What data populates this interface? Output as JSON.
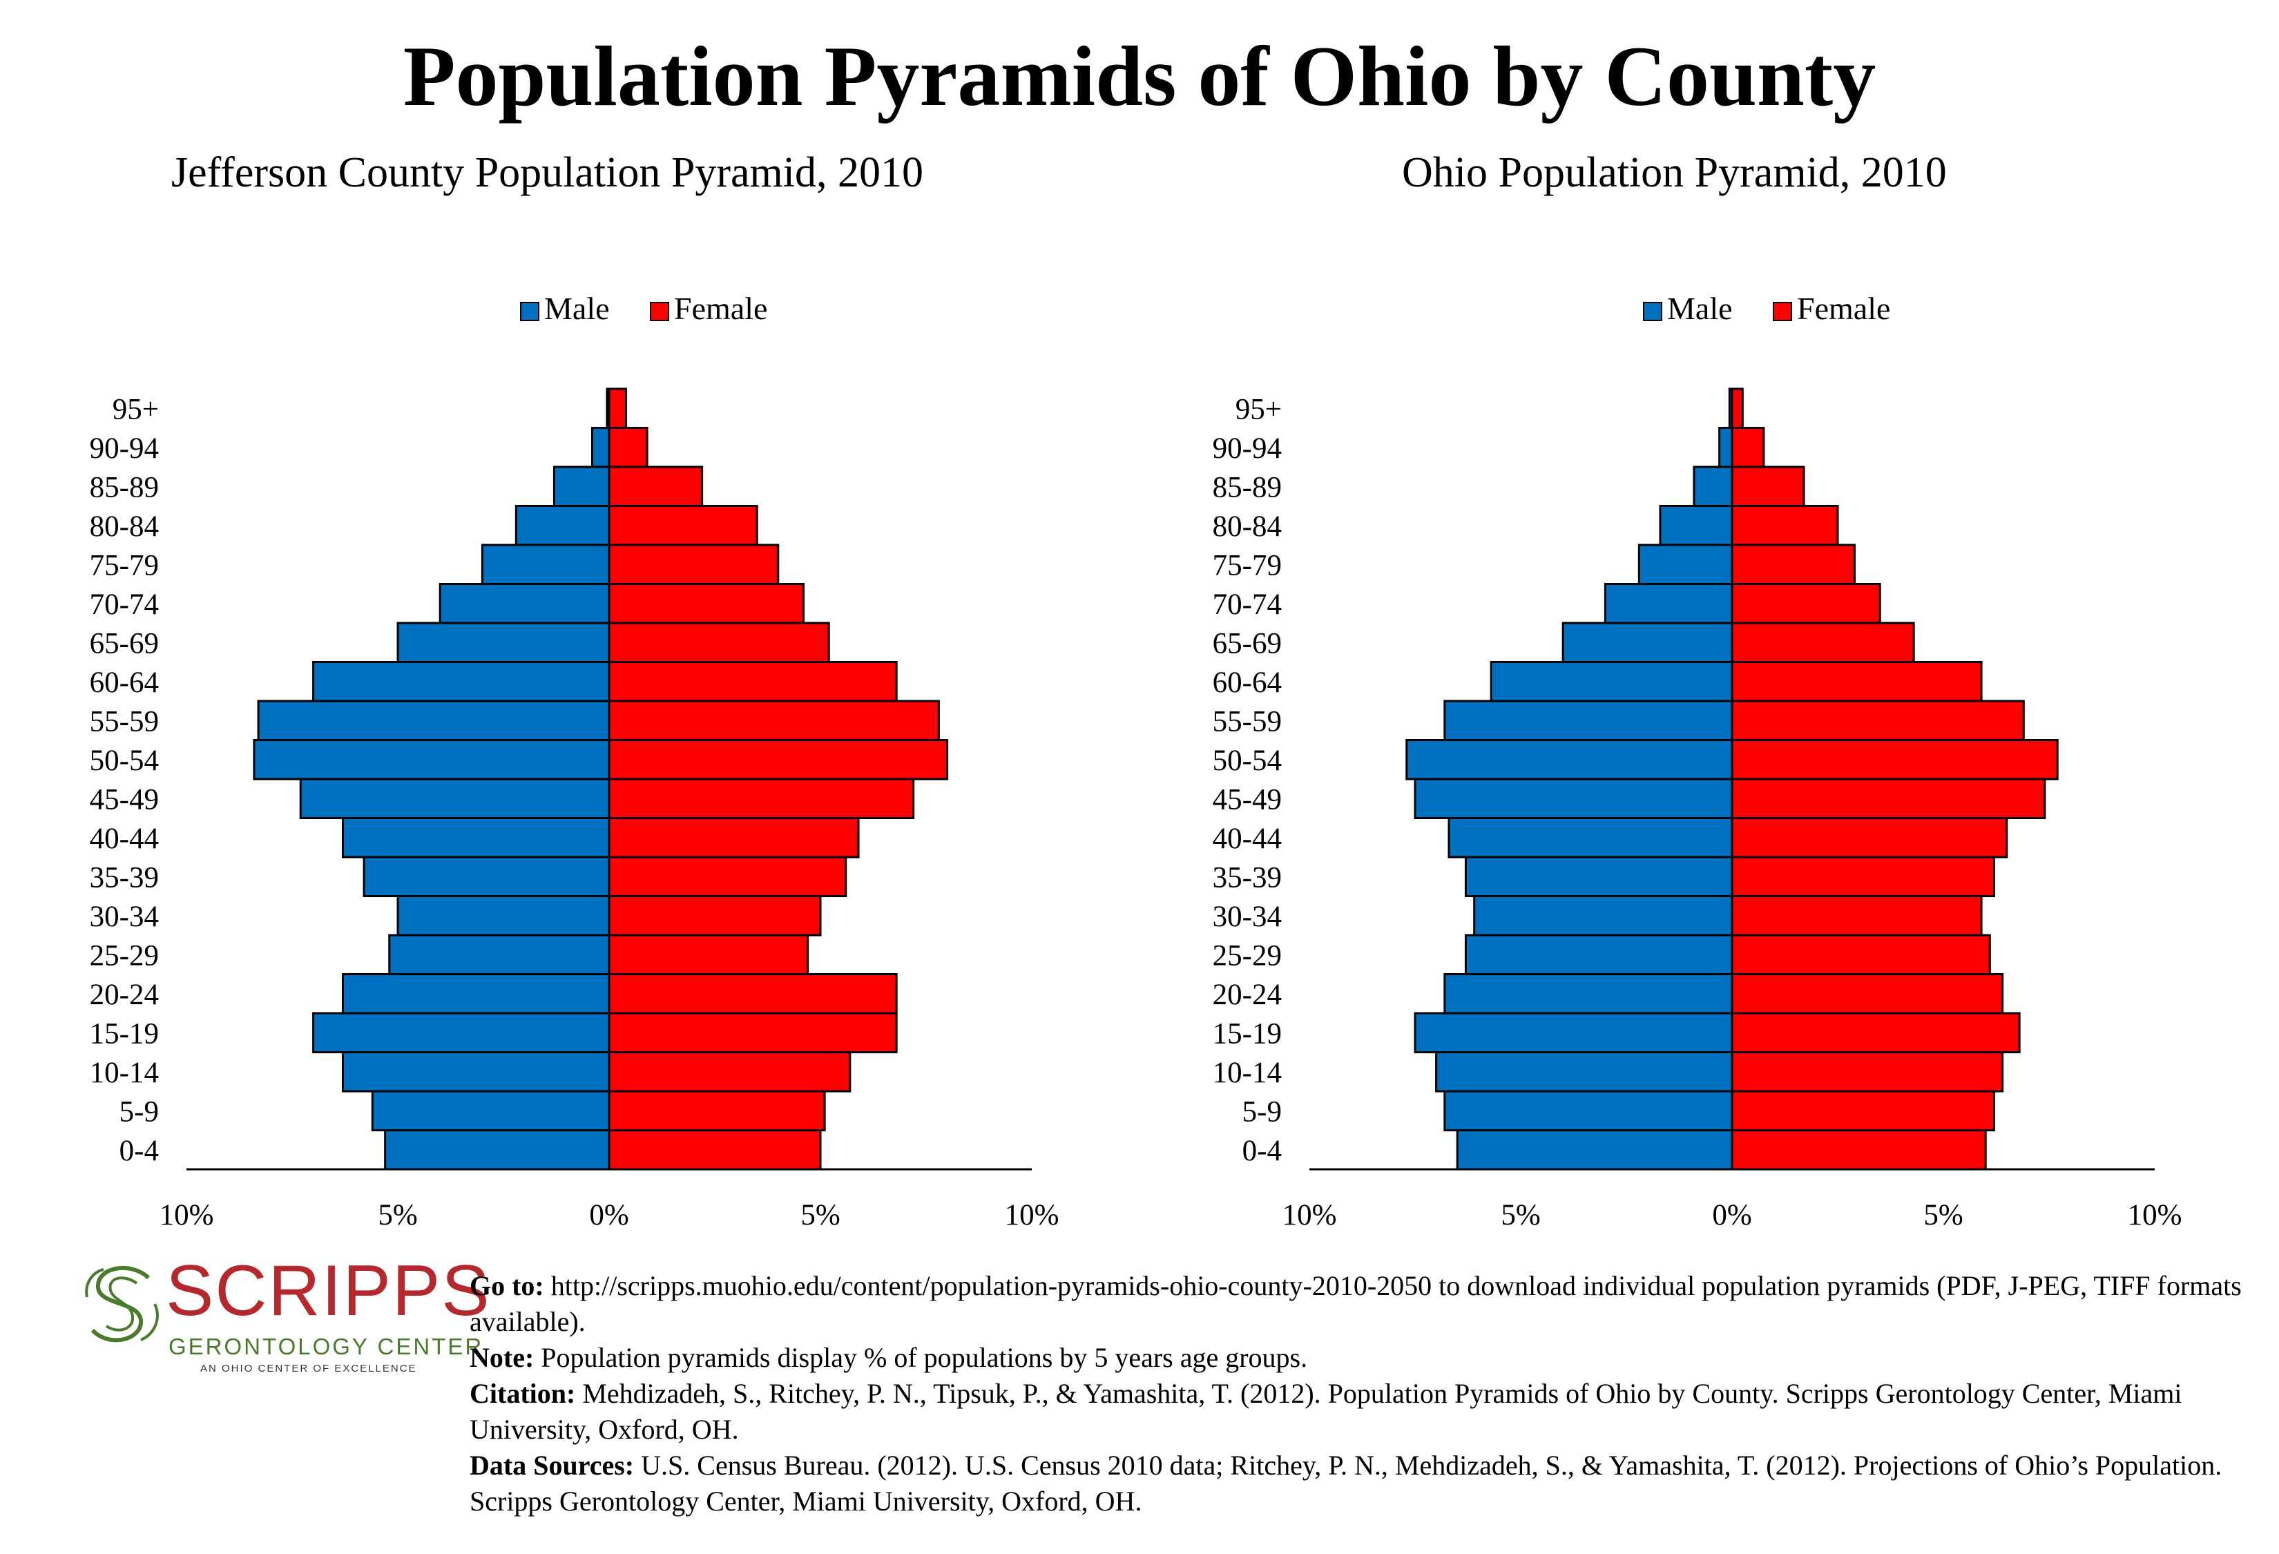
{
  "title": "Population Pyramids of Ohio by County",
  "legend": {
    "male": "Male",
    "female": "Female"
  },
  "colors": {
    "male": "#0070c0",
    "female": "#ff0000"
  },
  "chart_data": [
    {
      "type": "bar",
      "title": "Jefferson County Population Pyramid, 2010",
      "categories": [
        "95+",
        "90-94",
        "85-89",
        "80-84",
        "75-79",
        "70-74",
        "65-69",
        "60-64",
        "55-59",
        "50-54",
        "45-49",
        "40-44",
        "35-39",
        "30-34",
        "25-29",
        "20-24",
        "15-19",
        "10-14",
        "5-9",
        "0-4"
      ],
      "series": [
        {
          "name": "Male",
          "values": [
            0.05,
            0.4,
            1.3,
            2.2,
            3.0,
            4.0,
            5.0,
            7.0,
            8.3,
            8.4,
            7.3,
            6.3,
            5.8,
            5.0,
            5.2,
            6.3,
            7.0,
            6.3,
            5.6,
            5.3
          ]
        },
        {
          "name": "Female",
          "values": [
            0.4,
            0.9,
            2.2,
            3.5,
            4.0,
            4.6,
            5.2,
            6.8,
            7.8,
            8.0,
            7.2,
            5.9,
            5.6,
            5.0,
            4.7,
            6.8,
            6.8,
            5.7,
            5.1,
            5.0
          ]
        }
      ],
      "xticks": [
        "10%",
        "5%",
        "0%",
        "5%",
        "10%"
      ],
      "xlim": [
        -10,
        10
      ],
      "legend_position": "top-center"
    },
    {
      "type": "bar",
      "title": "Ohio Population Pyramid, 2010",
      "categories": [
        "95+",
        "90-94",
        "85-89",
        "80-84",
        "75-79",
        "70-74",
        "65-69",
        "60-64",
        "55-59",
        "50-54",
        "45-49",
        "40-44",
        "35-39",
        "30-34",
        "25-29",
        "20-24",
        "15-19",
        "10-14",
        "5-9",
        "0-4"
      ],
      "series": [
        {
          "name": "Male",
          "values": [
            0.06,
            0.3,
            0.9,
            1.7,
            2.2,
            3.0,
            4.0,
            5.7,
            6.8,
            7.7,
            7.5,
            6.7,
            6.3,
            6.1,
            6.3,
            6.8,
            7.5,
            7.0,
            6.8,
            6.5
          ]
        },
        {
          "name": "Female",
          "values": [
            0.25,
            0.75,
            1.7,
            2.5,
            2.9,
            3.5,
            4.3,
            5.9,
            6.9,
            7.7,
            7.4,
            6.5,
            6.2,
            5.9,
            6.1,
            6.4,
            6.8,
            6.4,
            6.2,
            6.0
          ]
        }
      ],
      "xticks": [
        "10%",
        "5%",
        "0%",
        "5%",
        "10%"
      ],
      "xlim": [
        -10,
        10
      ],
      "legend_position": "top-center"
    }
  ],
  "logo": {
    "name": "SCRIPPS",
    "subtitle": "GERONTOLOGY CENTER",
    "tagline": "AN OHIO CENTER OF EXCELLENCE"
  },
  "notes": {
    "goto_label": "Go to:",
    "goto_text": " http://scripps.muohio.edu/content/population-pyramids-ohio-county-2010-2050 to download individual population pyramids (PDF, J-PEG, TIFF formats available).",
    "note_label": "Note:",
    "note_text": " Population pyramids display % of populations by 5 years age groups.",
    "citation_label": "Citation:",
    "citation_text": " Mehdizadeh, S., Ritchey, P. N., Tipsuk, P., & Yamashita, T. (2012). Population Pyramids of Ohio by County. Scripps Gerontology Center, Miami University, Oxford, OH.",
    "sources_label": "Data Sources:",
    "sources_text": " U.S. Census Bureau. (2012). U.S. Census 2010 data; Ritchey, P. N., Mehdizadeh, S., & Yamashita, T. (2012). Projections of Ohio’s Population. Scripps Gerontology Center, Miami University, Oxford, OH."
  }
}
